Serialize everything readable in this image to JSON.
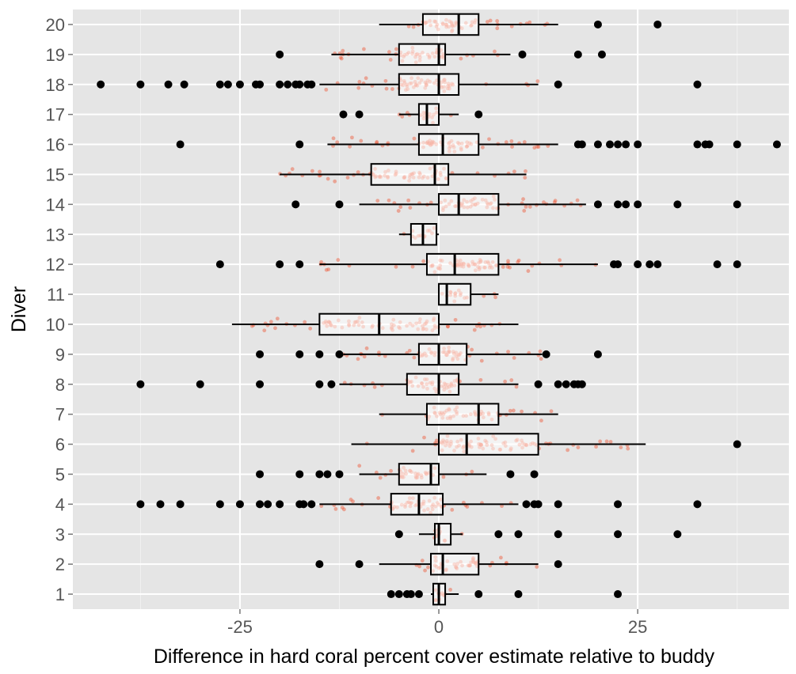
{
  "chart_data": {
    "type": "boxplot",
    "orientation": "horizontal",
    "xlabel": "Difference in hard coral percent cover estimate relative to buddy",
    "ylabel": "Diver",
    "xlim": [
      -46,
      44
    ],
    "x_ticks": [
      -25,
      0,
      25
    ],
    "x_tick_labels": [
      "-25",
      "0",
      "25"
    ],
    "grid": true,
    "background": "#e5e5e5",
    "colors": {
      "jitter": "#ee5533",
      "outlier": "#000000",
      "box_fill": "#ffffff",
      "box_line": "#000000"
    },
    "categories": [
      "1",
      "2",
      "3",
      "4",
      "5",
      "6",
      "7",
      "8",
      "9",
      "10",
      "11",
      "12",
      "13",
      "14",
      "15",
      "16",
      "17",
      "18",
      "19",
      "20"
    ],
    "boxes": [
      {
        "diver": "1",
        "whisker_low": -1,
        "q1": -0.7,
        "median": 0,
        "q3": 0.8,
        "whisker_high": 2.5,
        "outliers": [
          -6,
          -5,
          -4,
          -3.5,
          -2.5,
          5,
          10,
          22.5
        ]
      },
      {
        "diver": "2",
        "whisker_low": -7.5,
        "q1": -1,
        "median": 0.5,
        "q3": 5,
        "whisker_high": 12.5,
        "outliers": [
          -15,
          -10,
          15
        ]
      },
      {
        "diver": "3",
        "whisker_low": -2.5,
        "q1": -0.5,
        "median": 0,
        "q3": 1.5,
        "whisker_high": 3,
        "outliers": [
          -5,
          7.5,
          10,
          15,
          22.5,
          30
        ]
      },
      {
        "diver": "4",
        "whisker_low": -15,
        "q1": -6,
        "median": -2.5,
        "q3": 0.5,
        "whisker_high": 10,
        "outliers": [
          -37.5,
          -35,
          -32.5,
          -27.5,
          -25,
          -22.5,
          -21.5,
          -20,
          -17.5,
          -17,
          -16,
          11,
          12,
          12.5,
          15,
          22.5,
          32.5
        ]
      },
      {
        "diver": "5",
        "whisker_low": -10,
        "q1": -5,
        "median": -1,
        "q3": 0,
        "whisker_high": 6,
        "outliers": [
          -22.5,
          -17.5,
          -15,
          -14,
          -12.5,
          9,
          12
        ]
      },
      {
        "diver": "6",
        "whisker_low": -11,
        "q1": 0,
        "median": 3.5,
        "q3": 12.5,
        "whisker_high": 26,
        "outliers": [
          37.5
        ]
      },
      {
        "diver": "7",
        "whisker_low": -7.5,
        "q1": -1.5,
        "median": 5,
        "q3": 7.5,
        "whisker_high": 15,
        "outliers": []
      },
      {
        "diver": "8",
        "whisker_low": -12.5,
        "q1": -4,
        "median": 0,
        "q3": 2.5,
        "whisker_high": 10,
        "outliers": [
          -37.5,
          -30,
          -22.5,
          -15,
          -13.5,
          12.5,
          15,
          16,
          17,
          17.5,
          18
        ]
      },
      {
        "diver": "9",
        "whisker_low": -12,
        "q1": -2.5,
        "median": 0,
        "q3": 3.5,
        "whisker_high": 13,
        "outliers": [
          -22.5,
          -17.5,
          -15,
          -12.5,
          13.5,
          20
        ]
      },
      {
        "diver": "10",
        "whisker_low": -26,
        "q1": -15,
        "median": -7.5,
        "q3": 0,
        "whisker_high": 10,
        "outliers": []
      },
      {
        "diver": "11",
        "whisker_low": 0,
        "q1": 0,
        "median": 1,
        "q3": 4,
        "whisker_high": 7.5,
        "outliers": []
      },
      {
        "diver": "12",
        "whisker_low": -15,
        "q1": -1.5,
        "median": 2,
        "q3": 7.5,
        "whisker_high": 20,
        "outliers": [
          -27.5,
          -20,
          -17.5,
          22,
          22.5,
          25,
          26.5,
          27.5,
          35,
          37.5
        ]
      },
      {
        "diver": "13",
        "whisker_low": -5,
        "q1": -3.5,
        "median": -2,
        "q3": -0.3,
        "whisker_high": 0,
        "outliers": []
      },
      {
        "diver": "14",
        "whisker_low": -10,
        "q1": 0,
        "median": 2.5,
        "q3": 7.5,
        "whisker_high": 18.5,
        "outliers": [
          -18,
          -12.5,
          20,
          22.5,
          23.5,
          25,
          30,
          37.5
        ]
      },
      {
        "diver": "15",
        "whisker_low": -20,
        "q1": -8.5,
        "median": -0.5,
        "q3": 1.2,
        "whisker_high": 11,
        "outliers": []
      },
      {
        "diver": "16",
        "whisker_low": -14,
        "q1": -2.5,
        "median": 0.5,
        "q3": 5,
        "whisker_high": 15,
        "outliers": [
          -32.5,
          -17.5,
          17.5,
          18,
          20,
          21.5,
          22.5,
          23.5,
          25,
          32.5,
          33.5,
          34,
          37.5,
          42.5
        ]
      },
      {
        "diver": "17",
        "whisker_low": -5,
        "q1": -2.5,
        "median": -1.5,
        "q3": 0,
        "whisker_high": 2.5,
        "outliers": [
          -12,
          -10,
          5
        ]
      },
      {
        "diver": "18",
        "whisker_low": -15,
        "q1": -5,
        "median": 0,
        "q3": 2.5,
        "whisker_high": 12.5,
        "outliers": [
          -42.5,
          -37.5,
          -34,
          -32,
          -27.5,
          -26.5,
          -25,
          -23,
          -22.5,
          -20,
          -19,
          -18,
          -17.5,
          -16.5,
          -16,
          15,
          32.5
        ]
      },
      {
        "diver": "19",
        "whisker_low": -13.5,
        "q1": -5,
        "median": 0,
        "q3": 0.8,
        "whisker_high": 9,
        "outliers": [
          -20,
          10.5,
          17.5,
          20.5
        ]
      },
      {
        "diver": "20",
        "whisker_low": -7.5,
        "q1": -2,
        "median": 2.5,
        "q3": 5,
        "whisker_high": 15,
        "outliers": [
          20,
          27.5
        ]
      }
    ]
  }
}
